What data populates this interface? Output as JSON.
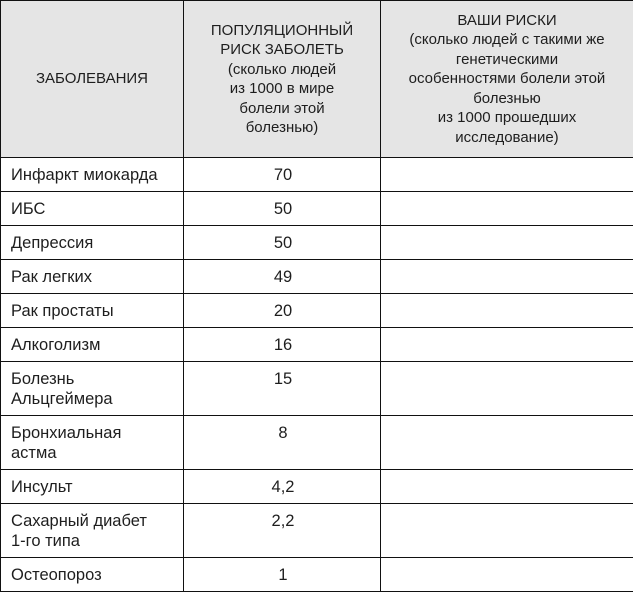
{
  "header": {
    "col1": [
      "ЗАБОЛЕВАНИЯ"
    ],
    "col2": [
      "ПОПУЛЯЦИОННЫЙ",
      "РИСК ЗАБОЛЕТЬ",
      "(сколько людей",
      "из 1000 в мире",
      "болели этой",
      "болезнью)"
    ],
    "col3": [
      "ВАШИ РИСКИ",
      "(сколько людей с такими же",
      "генетическими",
      "особенностями болели этой",
      "болезнью",
      "из 1000 прошедших",
      "исследование)"
    ]
  },
  "rows": [
    {
      "disease": [
        "Инфаркт миокарда"
      ],
      "population_risk": "70",
      "your_risk": ""
    },
    {
      "disease": [
        "ИБС"
      ],
      "population_risk": "50",
      "your_risk": ""
    },
    {
      "disease": [
        "Депрессия"
      ],
      "population_risk": "50",
      "your_risk": ""
    },
    {
      "disease": [
        "Рак легких"
      ],
      "population_risk": "49",
      "your_risk": ""
    },
    {
      "disease": [
        "Рак простаты"
      ],
      "population_risk": "20",
      "your_risk": ""
    },
    {
      "disease": [
        "Алкоголизм"
      ],
      "population_risk": "16",
      "your_risk": ""
    },
    {
      "disease": [
        "Болезнь",
        "Альцгеймера"
      ],
      "population_risk": "15",
      "your_risk": ""
    },
    {
      "disease": [
        "Бронхиальная",
        "астма"
      ],
      "population_risk": "8",
      "your_risk": ""
    },
    {
      "disease": [
        "Инсульт"
      ],
      "population_risk": "4,2",
      "your_risk": ""
    },
    {
      "disease": [
        "Сахарный диабет",
        "1-го типа"
      ],
      "population_risk": "2,2",
      "your_risk": ""
    },
    {
      "disease": [
        "Остеопороз"
      ],
      "population_risk": "1",
      "your_risk": ""
    }
  ]
}
